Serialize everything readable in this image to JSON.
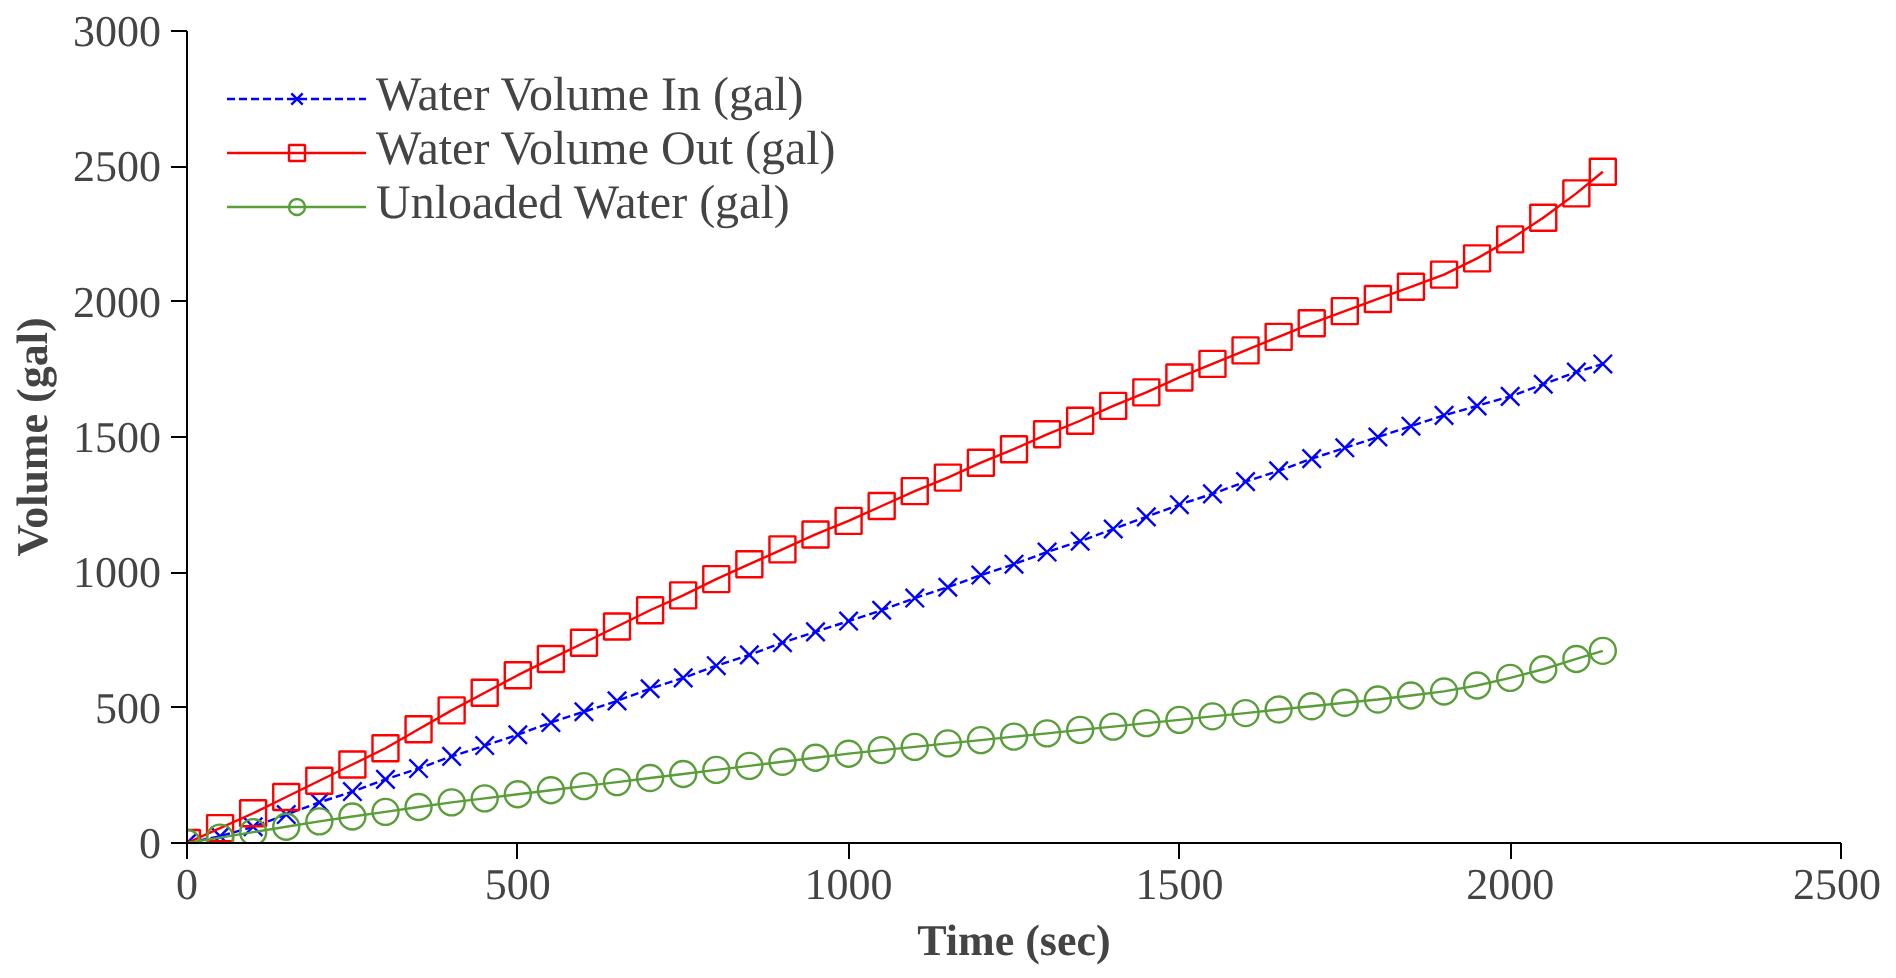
{
  "chart_data": {
    "type": "line",
    "xlabel": "Time (sec)",
    "ylabel": "Volume (gal)",
    "xlim": [
      0,
      2500
    ],
    "xticks": [
      0,
      500,
      1000,
      1500,
      2000,
      2500
    ],
    "ylim": [
      0,
      3000
    ],
    "yticks": [
      0,
      500,
      1000,
      1500,
      2000,
      2500,
      3000
    ],
    "grid": false,
    "legend": "top left",
    "x": [
      0,
      50,
      100,
      150,
      200,
      250,
      300,
      350,
      400,
      450,
      500,
      550,
      600,
      650,
      700,
      750,
      800,
      850,
      900,
      950,
      1000,
      1050,
      1100,
      1150,
      1200,
      1250,
      1300,
      1350,
      1400,
      1450,
      1500,
      1550,
      1600,
      1650,
      1700,
      1750,
      1800,
      1850,
      1900,
      1950,
      2000,
      2050,
      2100,
      2140
    ],
    "series": [
      {
        "name": "Water Volume In (gal)",
        "color": "#0000ff",
        "marker": "cross",
        "line_style": "dashed",
        "values": [
          0,
          25,
          60,
          105,
          150,
          190,
          235,
          275,
          320,
          360,
          400,
          445,
          485,
          525,
          570,
          610,
          655,
          695,
          740,
          780,
          820,
          860,
          905,
          945,
          990,
          1030,
          1075,
          1115,
          1160,
          1205,
          1250,
          1290,
          1335,
          1375,
          1420,
          1460,
          1500,
          1540,
          1580,
          1615,
          1650,
          1695,
          1740,
          1770
        ]
      },
      {
        "name": "Water Volume Out (gal)",
        "color": "#ff0000",
        "marker": "square",
        "line_style": "solid",
        "values": [
          0,
          55,
          110,
          170,
          230,
          290,
          350,
          420,
          490,
          555,
          620,
          680,
          740,
          800,
          860,
          915,
          975,
          1030,
          1085,
          1140,
          1190,
          1245,
          1300,
          1350,
          1405,
          1455,
          1510,
          1560,
          1615,
          1665,
          1720,
          1770,
          1820,
          1870,
          1920,
          1965,
          2010,
          2055,
          2100,
          2160,
          2230,
          2310,
          2400,
          2480
        ]
      },
      {
        "name": "Unloaded Water (gal)",
        "color": "#5a9e3a",
        "marker": "circle",
        "line_style": "solid",
        "values": [
          0,
          20,
          40,
          60,
          80,
          98,
          115,
          133,
          150,
          165,
          180,
          195,
          210,
          225,
          240,
          255,
          270,
          285,
          300,
          315,
          330,
          343,
          355,
          368,
          380,
          393,
          405,
          418,
          430,
          443,
          455,
          468,
          480,
          493,
          505,
          518,
          530,
          545,
          560,
          582,
          610,
          642,
          680,
          710
        ]
      }
    ]
  }
}
